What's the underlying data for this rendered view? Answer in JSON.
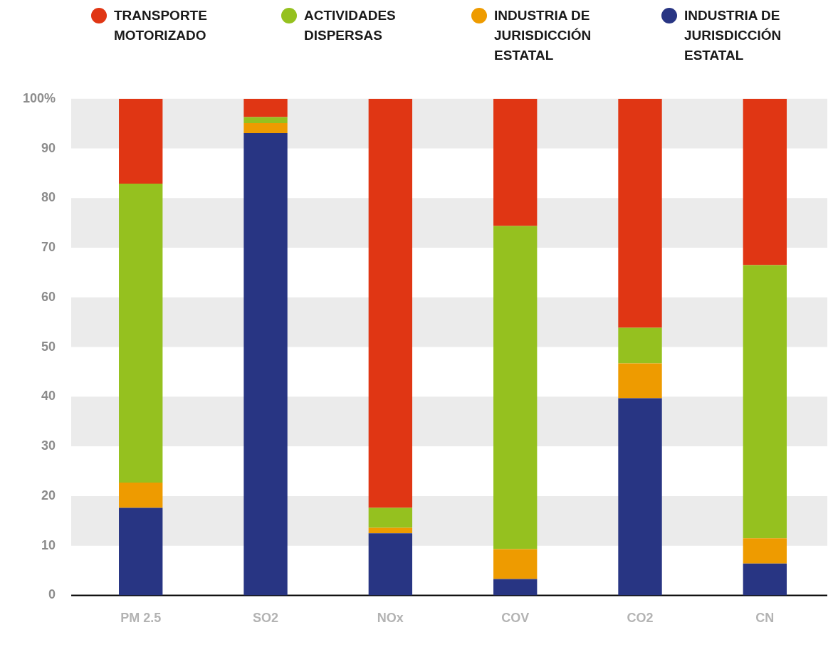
{
  "chart_data": {
    "type": "bar",
    "stacked": true,
    "categories": [
      "PM 2.5",
      "SO2",
      "NOx",
      "COV",
      "CO2",
      "CN"
    ],
    "series": [
      {
        "name": "INDUSTRIA DE JURISDICCIÓN ESTATAL",
        "color": "#283583",
        "values": [
          17.6,
          93.1,
          12.5,
          3.3,
          39.7,
          6.4
        ]
      },
      {
        "name": "INDUSTRIA DE JURISDICCIÓN ESTATAL",
        "color": "#ee9b00",
        "values": [
          5.1,
          2.0,
          1.1,
          6.0,
          7.0,
          5.1
        ]
      },
      {
        "name": "ACTIVIDADES DISPERSAS",
        "color": "#95c11f",
        "values": [
          60.2,
          1.2,
          4.0,
          65.1,
          7.2,
          55.0
        ]
      },
      {
        "name": "TRANSPORTE MOTORIZADO",
        "color": "#e03614",
        "values": [
          17.1,
          3.7,
          82.4,
          25.6,
          46.1,
          33.5
        ]
      }
    ],
    "ylim": [
      0,
      100
    ],
    "yticks": [
      0,
      10,
      20,
      30,
      40,
      50,
      60,
      70,
      80,
      90,
      {
        "value": 100,
        "label": "100%"
      }
    ],
    "legend": "top"
  }
}
